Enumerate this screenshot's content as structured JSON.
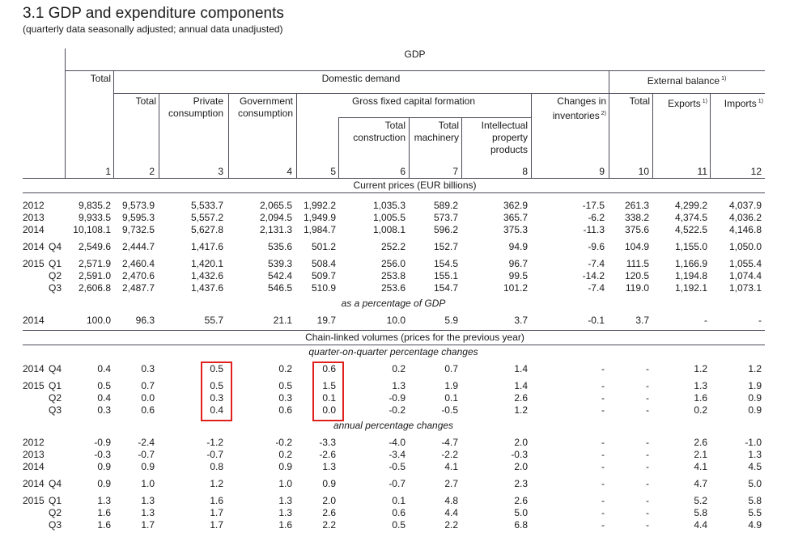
{
  "header": {
    "title": "3.1 GDP and expenditure components",
    "subtitle": "(quarterly data seasonally adjusted; annual data unadjusted)"
  },
  "table": {
    "columns": {
      "gdp": "GDP",
      "total": "Total",
      "domestic_demand": "Domestic demand",
      "external_balance": {
        "text": "External balance",
        "note": "1)"
      },
      "domestic_total": "Total",
      "private_consumption": [
        "Private",
        "consumption"
      ],
      "government_consumption": [
        "Government",
        "consumption"
      ],
      "gfcf": "Gross fixed capital formation",
      "total_construction": [
        "Total",
        "construction"
      ],
      "total_machinery": [
        "Total",
        "machinery"
      ],
      "ip_products": [
        "Intellectual",
        "property",
        "products"
      ],
      "changes_in_inventories": {
        "lines": [
          "Changes in",
          "inventories"
        ],
        "note": "2)"
      },
      "external_total": "Total",
      "exports": {
        "text": "Exports",
        "note": "1)"
      },
      "imports": {
        "text": "Imports",
        "note": "1)"
      },
      "numbers": [
        "1",
        "2",
        "3",
        "4",
        "5",
        "6",
        "7",
        "8",
        "9",
        "10",
        "11",
        "12"
      ]
    },
    "sections": [
      {
        "heading": "Current prices (EUR billions)",
        "parts": [
          {
            "blocks": [
              [
                {
                  "year": "2012",
                  "cells": [
                    "9,835.2",
                    "9,573.9",
                    "5,533.7",
                    "2,065.5",
                    "1,992.2",
                    "1,035.3",
                    "589.2",
                    "362.9",
                    "-17.5",
                    "261.3",
                    "4,299.2",
                    "4,037.9"
                  ]
                },
                {
                  "year": "2013",
                  "cells": [
                    "9,933.5",
                    "9,595.3",
                    "5,557.2",
                    "2,094.5",
                    "1,949.9",
                    "1,005.5",
                    "573.7",
                    "365.7",
                    "-6.2",
                    "338.2",
                    "4,374.5",
                    "4,036.2"
                  ]
                },
                {
                  "year": "2014",
                  "cells": [
                    "10,108.1",
                    "9,732.5",
                    "5,627.8",
                    "2,131.3",
                    "1,984.7",
                    "1,008.1",
                    "596.2",
                    "375.3",
                    "-11.3",
                    "375.6",
                    "4,522.5",
                    "4,146.8"
                  ]
                }
              ],
              [
                {
                  "year": "2014",
                  "quarter": "Q4",
                  "cells": [
                    "2,549.6",
                    "2,444.7",
                    "1,417.6",
                    "535.6",
                    "501.2",
                    "252.2",
                    "152.7",
                    "94.9",
                    "-9.6",
                    "104.9",
                    "1,155.0",
                    "1,050.0"
                  ]
                }
              ],
              [
                {
                  "year": "2015",
                  "quarter": "Q1",
                  "cells": [
                    "2,571.9",
                    "2,460.4",
                    "1,420.1",
                    "539.3",
                    "508.4",
                    "256.0",
                    "154.5",
                    "96.7",
                    "-7.4",
                    "111.5",
                    "1,166.9",
                    "1,055.4"
                  ]
                },
                {
                  "quarter": "Q2",
                  "cells": [
                    "2,591.0",
                    "2,470.6",
                    "1,432.6",
                    "542.4",
                    "509.7",
                    "253.8",
                    "155.1",
                    "99.5",
                    "-14.2",
                    "120.5",
                    "1,194.8",
                    "1,074.4"
                  ]
                },
                {
                  "quarter": "Q3",
                  "cells": [
                    "2,606.8",
                    "2,487.7",
                    "1,437.6",
                    "546.5",
                    "510.9",
                    "253.6",
                    "154.7",
                    "101.2",
                    "-7.4",
                    "119.0",
                    "1,192.1",
                    "1,073.1"
                  ]
                }
              ]
            ]
          },
          {
            "subheading": "as a percentage of GDP",
            "blocks": [
              [
                {
                  "year": "2014",
                  "cells": [
                    "100.0",
                    "96.3",
                    "55.7",
                    "21.1",
                    "19.7",
                    "10.0",
                    "5.9",
                    "3.7",
                    "-0.1",
                    "3.7",
                    "-",
                    "-"
                  ]
                }
              ]
            ]
          }
        ]
      },
      {
        "heading": "Chain-linked volumes (prices for the previous year)",
        "parts": [
          {
            "subheading": "quarter-on-quarter percentage changes",
            "blocks": [
              [
                {
                  "year": "2014",
                  "quarter": "Q4",
                  "cells": [
                    "0.4",
                    "0.3",
                    "0.5",
                    "0.2",
                    "0.6",
                    "0.2",
                    "0.7",
                    "1.4",
                    "-",
                    "-",
                    "1.2",
                    "1.2"
                  ]
                }
              ],
              [
                {
                  "year": "2015",
                  "quarter": "Q1",
                  "cells": [
                    "0.5",
                    "0.7",
                    "0.5",
                    "0.5",
                    "1.5",
                    "1.3",
                    "1.9",
                    "1.4",
                    "-",
                    "-",
                    "1.3",
                    "1.9"
                  ]
                },
                {
                  "quarter": "Q2",
                  "cells": [
                    "0.4",
                    "0.0",
                    "0.3",
                    "0.3",
                    "0.1",
                    "-0.9",
                    "0.1",
                    "2.6",
                    "-",
                    "-",
                    "1.6",
                    "0.9"
                  ]
                },
                {
                  "quarter": "Q3",
                  "cells": [
                    "0.3",
                    "0.6",
                    "0.4",
                    "0.6",
                    "0.0",
                    "-0.2",
                    "-0.5",
                    "1.2",
                    "-",
                    "-",
                    "0.2",
                    "0.9"
                  ]
                }
              ]
            ]
          },
          {
            "subheading": "annual percentage changes",
            "blocks": [
              [
                {
                  "year": "2012",
                  "cells": [
                    "-0.9",
                    "-2.4",
                    "-1.2",
                    "-0.2",
                    "-3.3",
                    "-4.0",
                    "-4.7",
                    "2.0",
                    "-",
                    "-",
                    "2.6",
                    "-1.0"
                  ]
                },
                {
                  "year": "2013",
                  "cells": [
                    "-0.3",
                    "-0.7",
                    "-0.7",
                    "0.2",
                    "-2.6",
                    "-3.4",
                    "-2.2",
                    "-0.3",
                    "-",
                    "-",
                    "2.1",
                    "1.3"
                  ]
                },
                {
                  "year": "2014",
                  "cells": [
                    "0.9",
                    "0.9",
                    "0.8",
                    "0.9",
                    "1.3",
                    "-0.5",
                    "4.1",
                    "2.0",
                    "-",
                    "-",
                    "4.1",
                    "4.5"
                  ]
                }
              ],
              [
                {
                  "year": "2014",
                  "quarter": "Q4",
                  "cells": [
                    "0.9",
                    "1.0",
                    "1.2",
                    "1.0",
                    "0.9",
                    "-0.7",
                    "2.7",
                    "2.3",
                    "-",
                    "-",
                    "4.7",
                    "5.0"
                  ]
                }
              ],
              [
                {
                  "year": "2015",
                  "quarter": "Q1",
                  "cells": [
                    "1.3",
                    "1.3",
                    "1.6",
                    "1.3",
                    "2.0",
                    "0.1",
                    "4.8",
                    "2.6",
                    "-",
                    "-",
                    "5.2",
                    "5.8"
                  ]
                },
                {
                  "quarter": "Q2",
                  "cells": [
                    "1.6",
                    "1.3",
                    "1.7",
                    "1.3",
                    "2.6",
                    "0.6",
                    "4.4",
                    "5.0",
                    "-",
                    "-",
                    "5.8",
                    "5.5"
                  ]
                },
                {
                  "quarter": "Q3",
                  "cells": [
                    "1.6",
                    "1.7",
                    "1.7",
                    "1.6",
                    "2.2",
                    "0.5",
                    "2.2",
                    "6.8",
                    "-",
                    "-",
                    "4.4",
                    "4.9"
                  ]
                }
              ]
            ]
          }
        ]
      }
    ]
  }
}
